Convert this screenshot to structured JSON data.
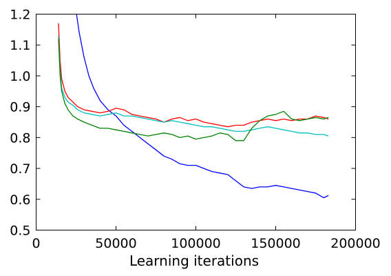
{
  "chart_data": {
    "type": "line",
    "title": "",
    "xlabel": "Learning iterations",
    "ylabel": "",
    "xlim": [
      0,
      200000
    ],
    "ylim": [
      0.5,
      1.2
    ],
    "xticks": [
      0,
      50000,
      100000,
      150000,
      200000
    ],
    "xtick_labels": [
      "0",
      "50000",
      "100000",
      "150000",
      "200000"
    ],
    "yticks": [
      0.5,
      0.6,
      0.7,
      0.8,
      0.9,
      1.0,
      1.1,
      1.2
    ],
    "ytick_labels": [
      "0.5",
      "0.6",
      "0.7",
      "0.8",
      "0.9",
      "1.0",
      "1.1",
      "1.2"
    ],
    "grid": false,
    "legend": "none",
    "series": [
      {
        "color": "#0000ff",
        "x": [
          25000,
          27000,
          30000,
          33000,
          36000,
          40000,
          45000,
          50000,
          55000,
          60000,
          65000,
          70000,
          75000,
          80000,
          85000,
          90000,
          95000,
          100000,
          105000,
          110000,
          115000,
          120000,
          125000,
          130000,
          135000,
          140000,
          145000,
          150000,
          155000,
          160000,
          165000,
          170000,
          175000,
          180000,
          183000
        ],
        "y": [
          1.21,
          1.14,
          1.06,
          1.0,
          0.96,
          0.92,
          0.89,
          0.87,
          0.84,
          0.82,
          0.8,
          0.78,
          0.76,
          0.74,
          0.73,
          0.715,
          0.71,
          0.71,
          0.7,
          0.69,
          0.685,
          0.68,
          0.66,
          0.64,
          0.635,
          0.64,
          0.64,
          0.645,
          0.64,
          0.635,
          0.63,
          0.625,
          0.62,
          0.605,
          0.612
        ]
      },
      {
        "color": "#ff0000",
        "x": [
          14000,
          15000,
          16000,
          18000,
          20000,
          23000,
          26000,
          30000,
          35000,
          40000,
          45000,
          50000,
          55000,
          60000,
          65000,
          70000,
          75000,
          80000,
          85000,
          90000,
          95000,
          100000,
          105000,
          110000,
          115000,
          120000,
          125000,
          130000,
          135000,
          140000,
          145000,
          150000,
          155000,
          160000,
          165000,
          170000,
          175000,
          180000,
          183000
        ],
        "y": [
          1.17,
          1.05,
          0.99,
          0.95,
          0.93,
          0.915,
          0.9,
          0.89,
          0.885,
          0.88,
          0.885,
          0.895,
          0.89,
          0.875,
          0.87,
          0.865,
          0.86,
          0.85,
          0.86,
          0.865,
          0.855,
          0.86,
          0.85,
          0.845,
          0.84,
          0.835,
          0.84,
          0.84,
          0.85,
          0.855,
          0.86,
          0.855,
          0.86,
          0.855,
          0.86,
          0.86,
          0.87,
          0.865,
          0.86
        ]
      },
      {
        "color": "#00bfbf",
        "x": [
          14000,
          15000,
          16000,
          18000,
          20000,
          23000,
          26000,
          30000,
          35000,
          40000,
          45000,
          50000,
          55000,
          60000,
          65000,
          70000,
          75000,
          80000,
          85000,
          90000,
          95000,
          100000,
          105000,
          110000,
          115000,
          120000,
          125000,
          130000,
          135000,
          140000,
          145000,
          150000,
          155000,
          160000,
          165000,
          170000,
          175000,
          180000,
          183000
        ],
        "y": [
          1.13,
          1.02,
          0.96,
          0.93,
          0.915,
          0.905,
          0.89,
          0.88,
          0.875,
          0.87,
          0.875,
          0.88,
          0.87,
          0.87,
          0.865,
          0.86,
          0.855,
          0.85,
          0.855,
          0.85,
          0.845,
          0.84,
          0.835,
          0.835,
          0.83,
          0.825,
          0.82,
          0.82,
          0.825,
          0.83,
          0.835,
          0.83,
          0.825,
          0.82,
          0.815,
          0.815,
          0.81,
          0.81,
          0.805
        ]
      },
      {
        "color": "#008000",
        "x": [
          14000,
          15000,
          16000,
          18000,
          20000,
          23000,
          26000,
          30000,
          35000,
          40000,
          45000,
          50000,
          55000,
          60000,
          65000,
          70000,
          75000,
          80000,
          85000,
          90000,
          95000,
          100000,
          105000,
          110000,
          115000,
          120000,
          125000,
          130000,
          135000,
          140000,
          145000,
          150000,
          155000,
          160000,
          165000,
          170000,
          175000,
          180000,
          183000
        ],
        "y": [
          1.12,
          1.0,
          0.95,
          0.91,
          0.89,
          0.87,
          0.86,
          0.85,
          0.84,
          0.83,
          0.83,
          0.825,
          0.82,
          0.815,
          0.81,
          0.805,
          0.81,
          0.815,
          0.81,
          0.8,
          0.805,
          0.795,
          0.8,
          0.805,
          0.815,
          0.81,
          0.79,
          0.79,
          0.83,
          0.855,
          0.87,
          0.875,
          0.885,
          0.86,
          0.855,
          0.86,
          0.865,
          0.86,
          0.865
        ]
      }
    ]
  }
}
